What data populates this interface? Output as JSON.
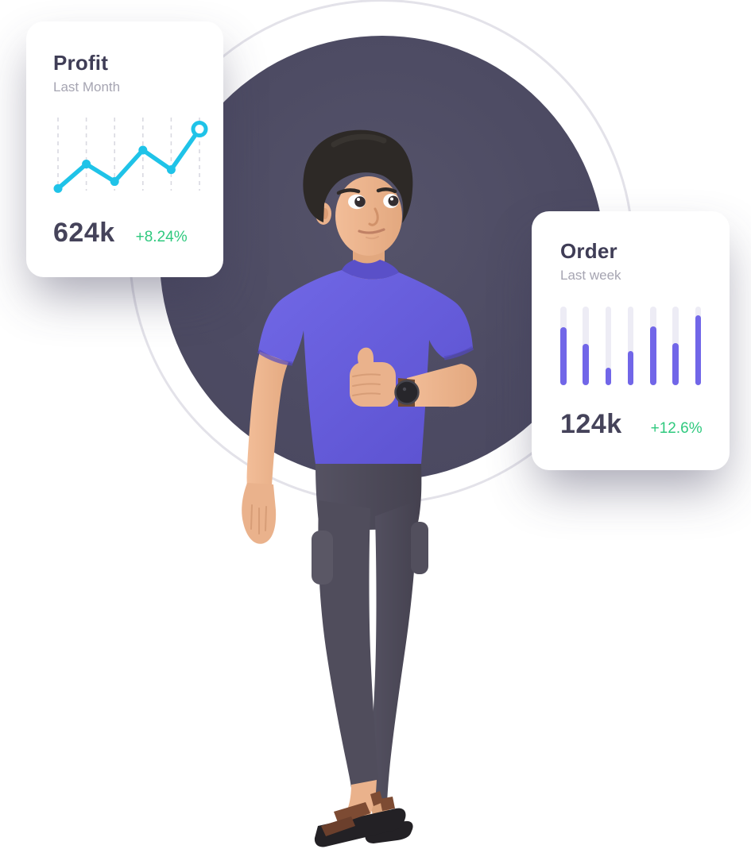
{
  "illustration": {
    "background_circle_color": "#4d4b63",
    "outline_ring_color": "#e3e2e9",
    "character": "man-purple-tshirt-thumbs-up"
  },
  "profit_card": {
    "title": "Profit",
    "subtitle": "Last Month",
    "value": "624k",
    "change": "+8.24%",
    "accent_color": "#1fc3e8",
    "change_color": "#2fc97e"
  },
  "order_card": {
    "title": "Order",
    "subtitle": "Last week",
    "value": "124k",
    "change": "+12.6%",
    "accent_color": "#7166e8",
    "change_color": "#2fc97e"
  },
  "chart_data": [
    {
      "type": "line",
      "title": "Profit",
      "subtitle": "Last Month",
      "values": [
        3,
        38,
        13,
        58,
        30,
        88
      ],
      "ylim": [
        0,
        100
      ],
      "grid": "vertical-dashed",
      "grid_line_count": 6,
      "line_color": "#1fc3e8",
      "point_style": "filled-dot",
      "last_point_style": "open-ring",
      "summary_value": "624k",
      "summary_change": "+8.24%"
    },
    {
      "type": "bar",
      "title": "Order",
      "subtitle": "Last week",
      "values": [
        74,
        53,
        22,
        43,
        75,
        54,
        89
      ],
      "ylim": [
        0,
        100
      ],
      "bar_color": "#7166e8",
      "track_color": "#edecf5",
      "bar_count": 7,
      "summary_value": "124k",
      "summary_change": "+12.6%"
    }
  ]
}
